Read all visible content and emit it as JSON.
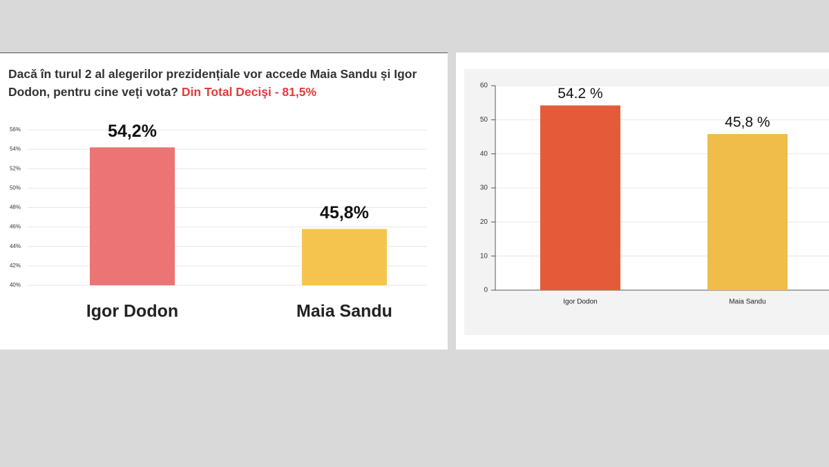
{
  "chart_data": [
    {
      "type": "bar",
      "title": "Dacă în turul 2 al alegerilor prezidențiale vor accede Maia Sandu și Igor Dodon, pentru cine veți vota?",
      "subtitle": "Din Total Decişi - 81,5%",
      "categories": [
        "Igor Dodon",
        "Maia Sandu"
      ],
      "values": [
        54.2,
        45.8
      ],
      "value_labels": [
        "54,2%",
        "45,8%"
      ],
      "colors": [
        "#ec7474",
        "#f4c44f"
      ],
      "ylim": [
        40,
        56
      ],
      "yticks": [
        {
          "value": 40,
          "label": "40%"
        },
        {
          "value": 42,
          "label": "42%"
        },
        {
          "value": 44,
          "label": "44%"
        },
        {
          "value": 46,
          "label": "46%"
        },
        {
          "value": 48,
          "label": "48%"
        },
        {
          "value": 50,
          "label": "50%"
        },
        {
          "value": 52,
          "label": "52%"
        },
        {
          "value": 54,
          "label": "54%"
        },
        {
          "value": 56,
          "label": "56%"
        }
      ],
      "grid": true
    },
    {
      "type": "bar",
      "categories": [
        "Igor Dodon",
        "Maia Sandu"
      ],
      "values": [
        54.2,
        45.8
      ],
      "value_labels": [
        "54.2 %",
        "45,8 %"
      ],
      "colors": [
        "#e55b3a",
        "#f0bd4b"
      ],
      "ylim": [
        0,
        60
      ],
      "yticks": [
        0,
        10,
        20,
        30,
        40,
        50,
        60
      ],
      "grid": true
    }
  ]
}
